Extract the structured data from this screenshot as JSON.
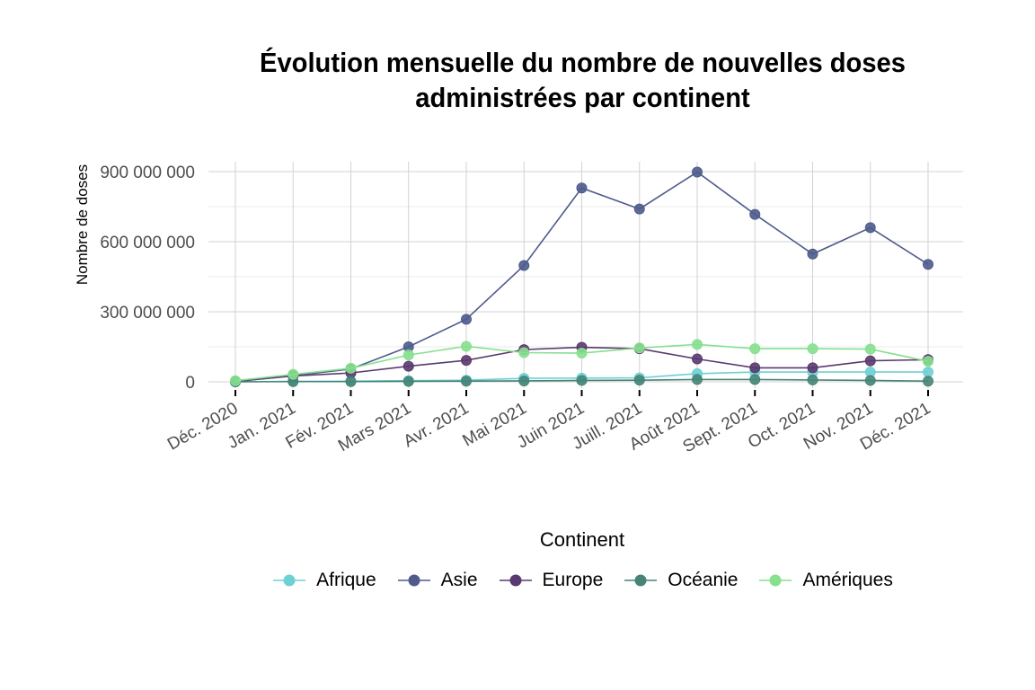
{
  "chart_data": {
    "type": "line",
    "title_lines": [
      "Évolution mensuelle du nombre de nouvelles doses",
      "administrées par continent"
    ],
    "ylabel": "Nombre de doses",
    "xlabel": "",
    "legend_title": "Continent",
    "legend_position": "bottom",
    "grid": true,
    "ylim": [
      0,
      900000000
    ],
    "yticks": [
      0,
      300000000,
      600000000,
      900000000
    ],
    "ytick_labels": [
      "0",
      "300 000 000",
      "600 000 000",
      "900 000 000"
    ],
    "categories": [
      "Déc. 2020",
      "Jan. 2021",
      "Fév. 2021",
      "Mars 2021",
      "Avr. 2021",
      "Mai 2021",
      "Juin 2021",
      "Juill. 2021",
      "Août 2021",
      "Sept. 2021",
      "Oct. 2021",
      "Nov. 2021",
      "Déc. 2021"
    ],
    "series": [
      {
        "name": "Afrique",
        "color": "#6ED0D4",
        "values": [
          0,
          2000000,
          3000000,
          5000000,
          7000000,
          15000000,
          16000000,
          17000000,
          35000000,
          42000000,
          42000000,
          42000000,
          42000000
        ]
      },
      {
        "name": "Asie",
        "color": "#4E5B8C",
        "values": [
          1000000,
          26000000,
          55000000,
          150000000,
          268000000,
          498000000,
          830000000,
          740000000,
          898000000,
          717000000,
          547000000,
          660000000,
          503000000
        ]
      },
      {
        "name": "Europe",
        "color": "#5A3A6E",
        "values": [
          2000000,
          25000000,
          38000000,
          67000000,
          92000000,
          138000000,
          148000000,
          142000000,
          98000000,
          60000000,
          60000000,
          90000000,
          95000000
        ]
      },
      {
        "name": "Océanie",
        "color": "#468478",
        "values": [
          0,
          1000000,
          1000000,
          2000000,
          3000000,
          4000000,
          6000000,
          7000000,
          10000000,
          10000000,
          8000000,
          6000000,
          3000000
        ]
      },
      {
        "name": "Amériques",
        "color": "#86E08E",
        "values": [
          5000000,
          32000000,
          58000000,
          115000000,
          152000000,
          125000000,
          123000000,
          145000000,
          160000000,
          142000000,
          142000000,
          140000000,
          88000000
        ]
      }
    ]
  }
}
